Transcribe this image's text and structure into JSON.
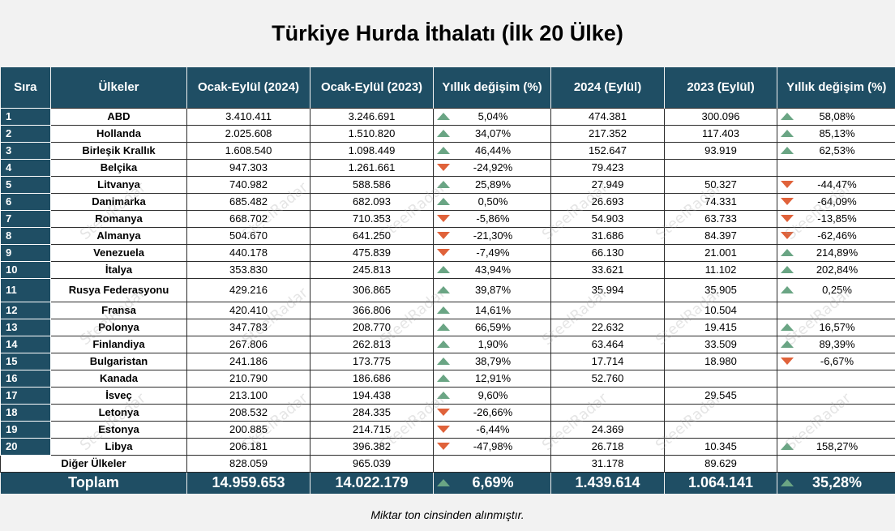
{
  "title": "Türkiye Hurda İthalatı (İlk 20 Ülke)",
  "headers": [
    "Sıra",
    "Ülkeler",
    "Ocak-Eylül (2024)",
    "Ocak-Eylül (2023)",
    "Yıllık değişim (%)",
    "2024 (Eylül)",
    "2023 (Eylül)",
    "Yıllık değişim (%)"
  ],
  "rows": [
    {
      "rank": "1",
      "country": "ABD",
      "ytd2024": "3.410.411",
      "ytd2023": "3.246.691",
      "ytd_dir": "up",
      "ytd_chg": "5,04%",
      "m2024": "474.381",
      "m2023": "300.096",
      "m_dir": "up",
      "m_chg": "58,08%"
    },
    {
      "rank": "2",
      "country": "Hollanda",
      "ytd2024": "2.025.608",
      "ytd2023": "1.510.820",
      "ytd_dir": "up",
      "ytd_chg": "34,07%",
      "m2024": "217.352",
      "m2023": "117.403",
      "m_dir": "up",
      "m_chg": "85,13%"
    },
    {
      "rank": "3",
      "country": "Birleşik Krallık",
      "ytd2024": "1.608.540",
      "ytd2023": "1.098.449",
      "ytd_dir": "up",
      "ytd_chg": "46,44%",
      "m2024": "152.647",
      "m2023": "93.919",
      "m_dir": "up",
      "m_chg": "62,53%"
    },
    {
      "rank": "4",
      "country": "Belçika",
      "ytd2024": "947.303",
      "ytd2023": "1.261.661",
      "ytd_dir": "down",
      "ytd_chg": "-24,92%",
      "m2024": "79.423",
      "m2023": "",
      "m_dir": "none",
      "m_chg": ""
    },
    {
      "rank": "5",
      "country": "Litvanya",
      "ytd2024": "740.982",
      "ytd2023": "588.586",
      "ytd_dir": "up",
      "ytd_chg": "25,89%",
      "m2024": "27.949",
      "m2023": "50.327",
      "m_dir": "down",
      "m_chg": "-44,47%"
    },
    {
      "rank": "6",
      "country": "Danimarka",
      "ytd2024": "685.482",
      "ytd2023": "682.093",
      "ytd_dir": "up",
      "ytd_chg": "0,50%",
      "m2024": "26.693",
      "m2023": "74.331",
      "m_dir": "down",
      "m_chg": "-64,09%"
    },
    {
      "rank": "7",
      "country": "Romanya",
      "ytd2024": "668.702",
      "ytd2023": "710.353",
      "ytd_dir": "down",
      "ytd_chg": "-5,86%",
      "m2024": "54.903",
      "m2023": "63.733",
      "m_dir": "down",
      "m_chg": "-13,85%"
    },
    {
      "rank": "8",
      "country": "Almanya",
      "ytd2024": "504.670",
      "ytd2023": "641.250",
      "ytd_dir": "down",
      "ytd_chg": "-21,30%",
      "m2024": "31.686",
      "m2023": "84.397",
      "m_dir": "down",
      "m_chg": "-62,46%"
    },
    {
      "rank": "9",
      "country": "Venezuela",
      "ytd2024": "440.178",
      "ytd2023": "475.839",
      "ytd_dir": "down",
      "ytd_chg": "-7,49%",
      "m2024": "66.130",
      "m2023": "21.001",
      "m_dir": "up",
      "m_chg": "214,89%"
    },
    {
      "rank": "10",
      "country": "İtalya",
      "ytd2024": "353.830",
      "ytd2023": "245.813",
      "ytd_dir": "up",
      "ytd_chg": "43,94%",
      "m2024": "33.621",
      "m2023": "11.102",
      "m_dir": "up",
      "m_chg": "202,84%"
    },
    {
      "rank": "11",
      "country": "Rusya Federasyonu",
      "ytd2024": "429.216",
      "ytd2023": "306.865",
      "ytd_dir": "up",
      "ytd_chg": "39,87%",
      "m2024": "35.994",
      "m2023": "35.905",
      "m_dir": "up",
      "m_chg": "0,25%",
      "tall": true
    },
    {
      "rank": "12",
      "country": "Fransa",
      "ytd2024": "420.410",
      "ytd2023": "366.806",
      "ytd_dir": "up",
      "ytd_chg": "14,61%",
      "m2024": "",
      "m2023": "10.504",
      "m_dir": "none",
      "m_chg": ""
    },
    {
      "rank": "13",
      "country": "Polonya",
      "ytd2024": "347.783",
      "ytd2023": "208.770",
      "ytd_dir": "up",
      "ytd_chg": "66,59%",
      "m2024": "22.632",
      "m2023": "19.415",
      "m_dir": "up",
      "m_chg": "16,57%"
    },
    {
      "rank": "14",
      "country": "Finlandiya",
      "ytd2024": "267.806",
      "ytd2023": "262.813",
      "ytd_dir": "up",
      "ytd_chg": "1,90%",
      "m2024": "63.464",
      "m2023": "33.509",
      "m_dir": "up",
      "m_chg": "89,39%"
    },
    {
      "rank": "15",
      "country": "Bulgaristan",
      "ytd2024": "241.186",
      "ytd2023": "173.775",
      "ytd_dir": "up",
      "ytd_chg": "38,79%",
      "m2024": "17.714",
      "m2023": "18.980",
      "m_dir": "down",
      "m_chg": "-6,67%"
    },
    {
      "rank": "16",
      "country": "Kanada",
      "ytd2024": "210.790",
      "ytd2023": "186.686",
      "ytd_dir": "up",
      "ytd_chg": "12,91%",
      "m2024": "52.760",
      "m2023": "",
      "m_dir": "none",
      "m_chg": ""
    },
    {
      "rank": "17",
      "country": "İsveç",
      "ytd2024": "213.100",
      "ytd2023": "194.438",
      "ytd_dir": "up",
      "ytd_chg": "9,60%",
      "m2024": "",
      "m2023": "29.545",
      "m_dir": "none",
      "m_chg": ""
    },
    {
      "rank": "18",
      "country": "Letonya",
      "ytd2024": "208.532",
      "ytd2023": "284.335",
      "ytd_dir": "down",
      "ytd_chg": "-26,66%",
      "m2024": "",
      "m2023": "",
      "m_dir": "none",
      "m_chg": ""
    },
    {
      "rank": "19",
      "country": "Estonya",
      "ytd2024": "200.885",
      "ytd2023": "214.715",
      "ytd_dir": "down",
      "ytd_chg": "-6,44%",
      "m2024": "24.369",
      "m2023": "",
      "m_dir": "none",
      "m_chg": ""
    },
    {
      "rank": "20",
      "country": "Libya",
      "ytd2024": "206.181",
      "ytd2023": "396.382",
      "ytd_dir": "down",
      "ytd_chg": "-47,98%",
      "m2024": "26.718",
      "m2023": "10.345",
      "m_dir": "up",
      "m_chg": "158,27%"
    }
  ],
  "other": {
    "label": "Diğer Ülkeler",
    "ytd2024": "828.059",
    "ytd2023": "965.039",
    "ytd_chg": "",
    "m2024": "31.178",
    "m2023": "89.629",
    "m_chg": ""
  },
  "total": {
    "label": "Toplam",
    "ytd2024": "14.959.653",
    "ytd2023": "14.022.179",
    "ytd_dir": "up",
    "ytd_chg": "6,69%",
    "m2024": "1.439.614",
    "m2023": "1.064.141",
    "m_dir": "up",
    "m_chg": "35,28%"
  },
  "footnote": "Miktar ton cinsinden alınmıştır.",
  "watermark": "SteelRadar",
  "colors": {
    "header_bg": "#1f4e64",
    "up_arrow": "#6aa584",
    "down_arrow": "#e0623a"
  }
}
